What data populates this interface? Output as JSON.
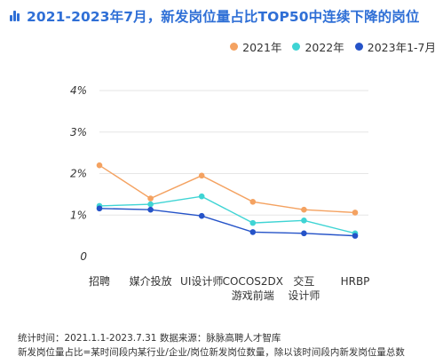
{
  "title": "2021-2023年7月，新发岗位量占比TOP50中连续下降的岗位",
  "icon": "bar-chart-icon",
  "colors": {
    "title": "#2f6fd6",
    "grid": "#e6e6e6",
    "axis_text": "#333333"
  },
  "chart_data": {
    "type": "line",
    "categories": [
      "招聘",
      "媒介投放",
      "UI设计师",
      "COCOS2DX|游戏前端",
      "交互|设计师",
      "HRBP"
    ],
    "yticks": [
      "0",
      "1%",
      "2%",
      "3%",
      "4%"
    ],
    "ylim": [
      0,
      4
    ],
    "grid": true,
    "legend_position": "top-right",
    "series": [
      {
        "name": "2021年",
        "color": "#f4a261",
        "values": [
          2.2,
          1.4,
          1.95,
          1.32,
          1.13,
          1.06
        ]
      },
      {
        "name": "2022年",
        "color": "#3fd4d4",
        "values": [
          1.22,
          1.26,
          1.45,
          0.81,
          0.87,
          0.56
        ]
      },
      {
        "name": "2023年1-7月",
        "color": "#2553c8",
        "values": [
          1.16,
          1.13,
          0.98,
          0.59,
          0.56,
          0.5
        ]
      }
    ]
  },
  "footnotes": [
    "统计时间：2021.1.1-2023.7.31      数据来源：脉脉高聘人才智库",
    "新发岗位量占比=某时间段内某行业/企业/岗位新发岗位数量，除以该时间段内新发岗位量总数"
  ]
}
